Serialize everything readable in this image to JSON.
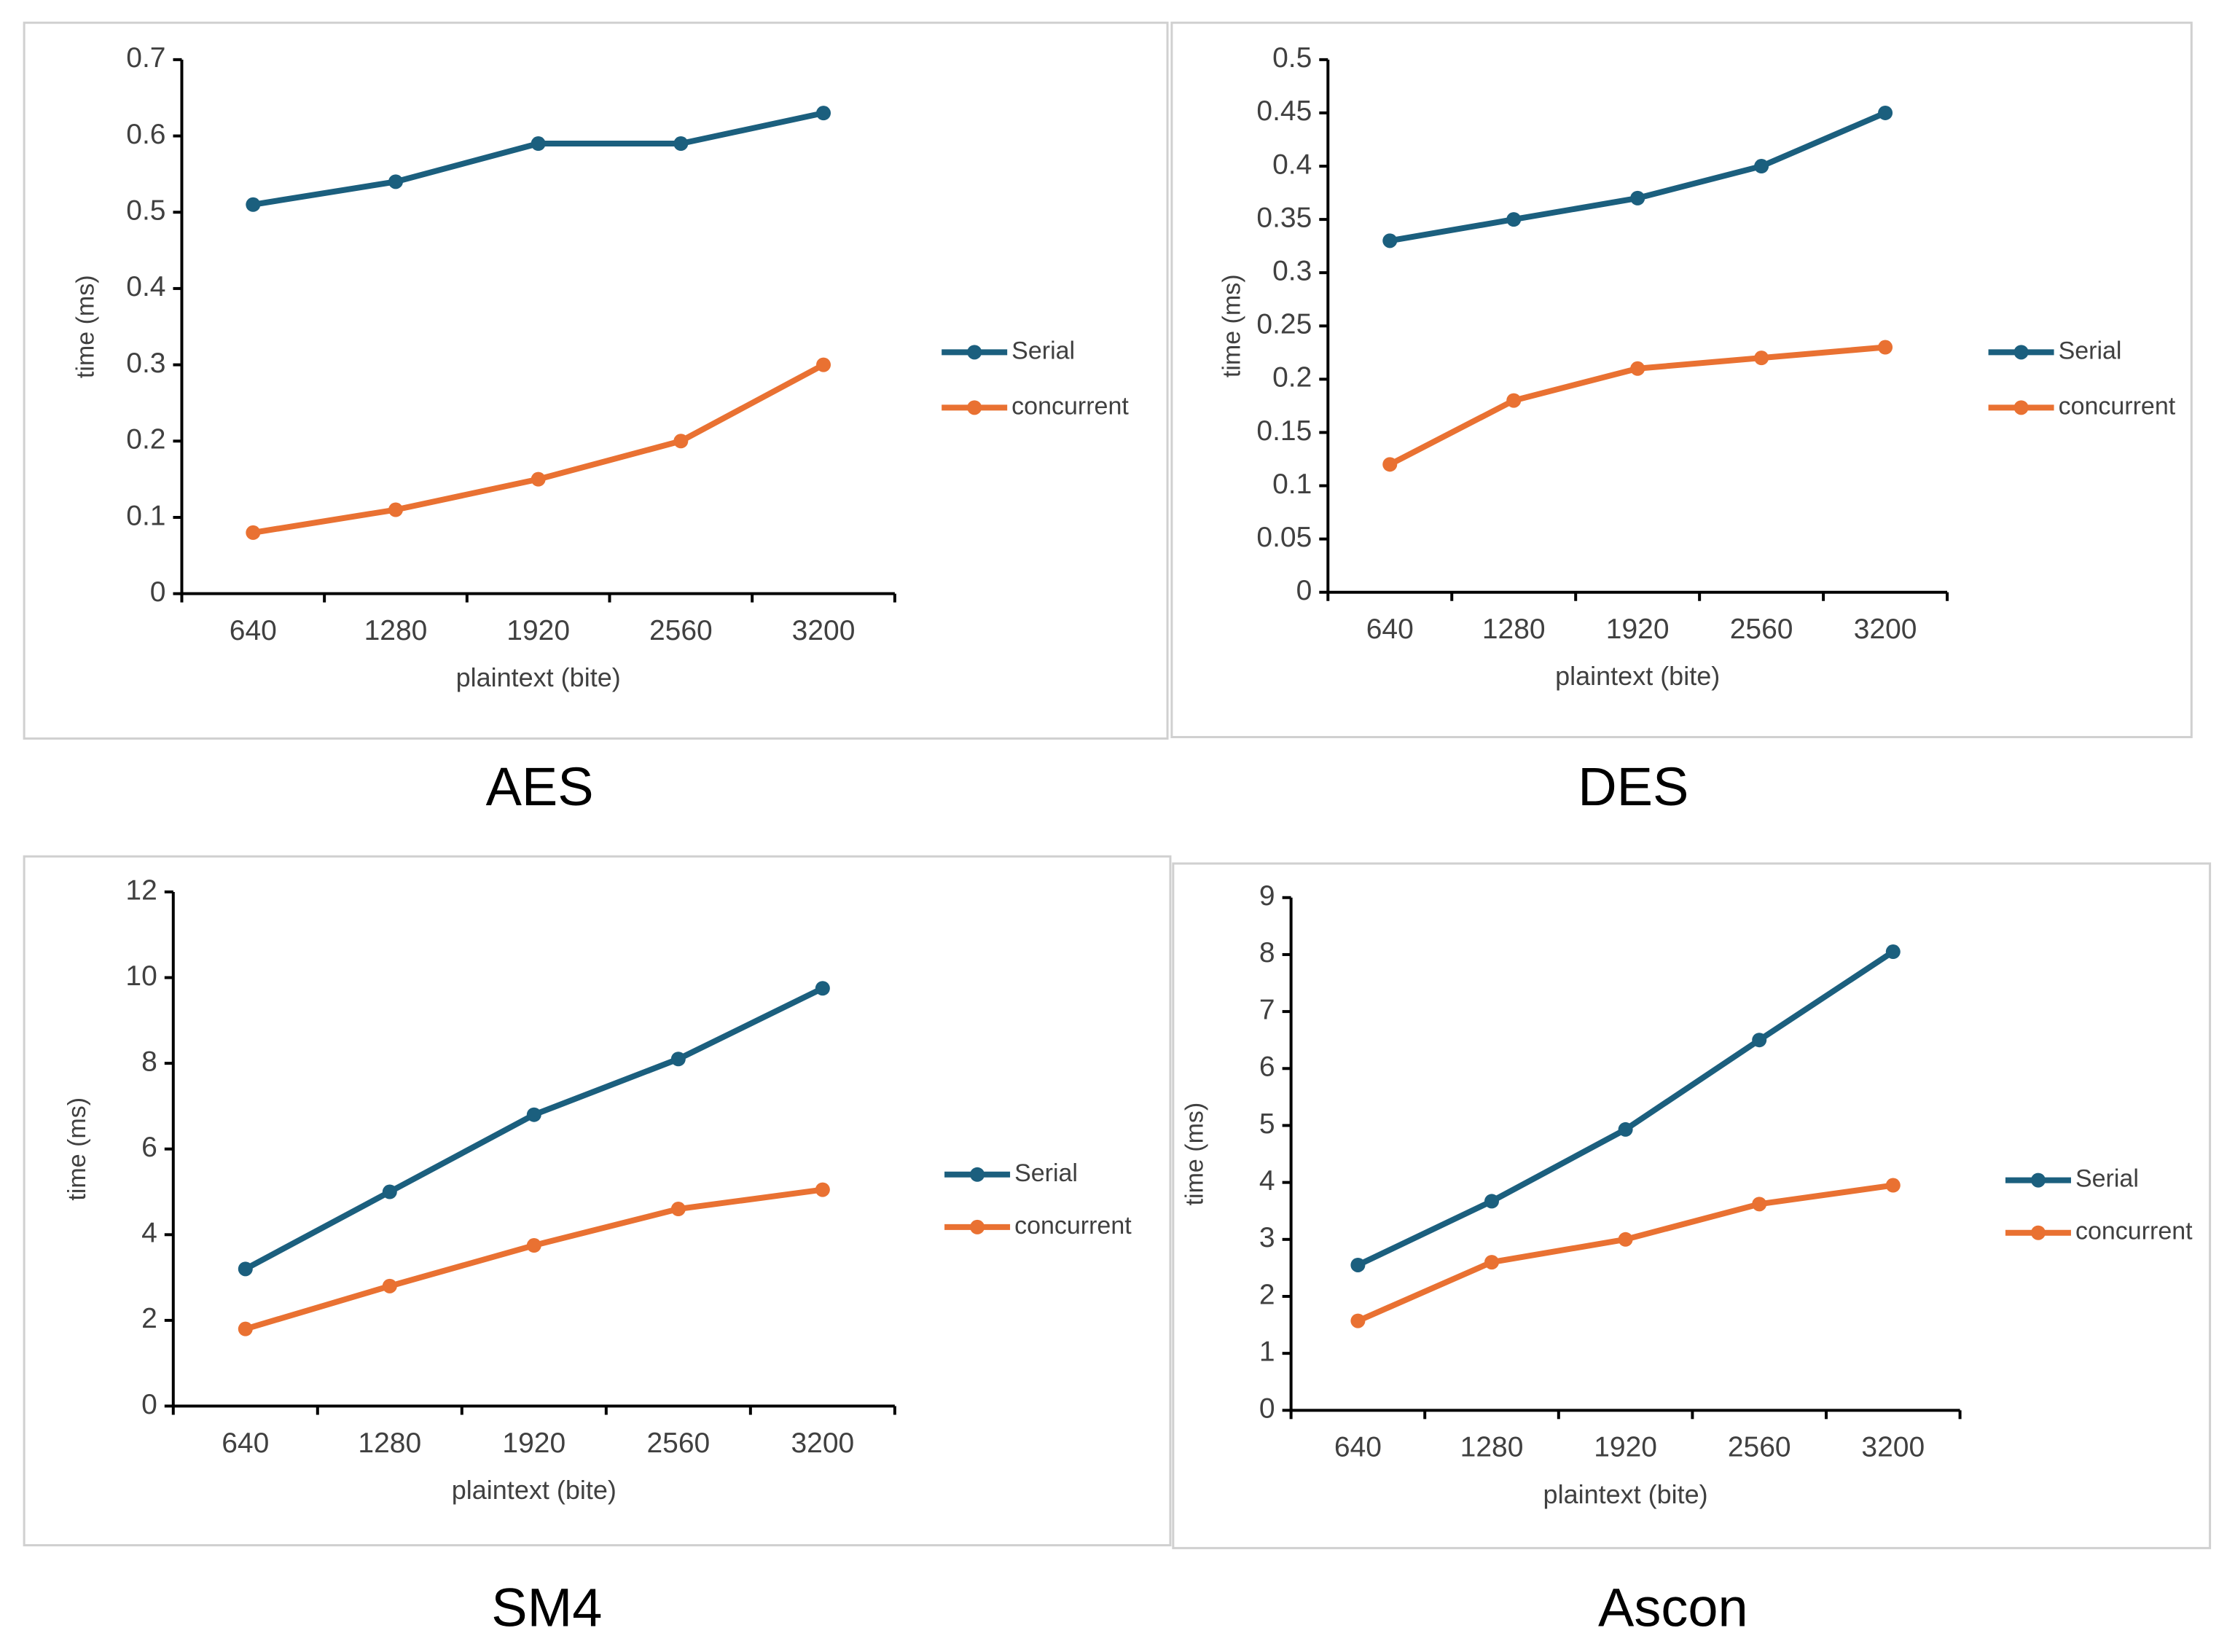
{
  "chart_data": [
    {
      "type": "line",
      "title": "AES",
      "x_label": "plaintext (bite)",
      "y_label": "time (ms)",
      "categories": [
        "640",
        "1280",
        "1920",
        "2560",
        "3200"
      ],
      "series": [
        {
          "name": "Serial",
          "color": "#1b5f7e",
          "values": [
            0.51,
            0.54,
            0.59,
            0.59,
            0.63
          ]
        },
        {
          "name": "concurrent",
          "color": "#e97132",
          "values": [
            0.08,
            0.11,
            0.15,
            0.2,
            0.3
          ]
        }
      ],
      "ylim": [
        0,
        0.7
      ],
      "yticks": [
        0,
        0.1,
        0.2,
        0.3,
        0.4,
        0.5,
        0.6,
        0.7
      ],
      "legend": "right"
    },
    {
      "type": "line",
      "title": "DES",
      "x_label": "plaintext (bite)",
      "y_label": "time (ms)",
      "categories": [
        "640",
        "1280",
        "1920",
        "2560",
        "3200"
      ],
      "series": [
        {
          "name": "Serial",
          "color": "#1b5f7e",
          "values": [
            0.33,
            0.35,
            0.37,
            0.4,
            0.45
          ]
        },
        {
          "name": "concurrent",
          "color": "#e97132",
          "values": [
            0.12,
            0.18,
            0.21,
            0.22,
            0.23
          ]
        }
      ],
      "ylim": [
        0,
        0.5
      ],
      "yticks": [
        0,
        0.05,
        0.1,
        0.15,
        0.2,
        0.25,
        0.3,
        0.35,
        0.4,
        0.45,
        0.5
      ],
      "legend": "right"
    },
    {
      "type": "line",
      "title": "SM4",
      "x_label": "plaintext (bite)",
      "y_label": "time (ms)",
      "categories": [
        "640",
        "1280",
        "1920",
        "2560",
        "3200"
      ],
      "series": [
        {
          "name": "Serial",
          "color": "#1b5f7e",
          "values": [
            3.2,
            5.0,
            6.8,
            8.1,
            9.75
          ]
        },
        {
          "name": "concurrent",
          "color": "#e97132",
          "values": [
            1.8,
            2.8,
            3.75,
            4.6,
            5.05
          ]
        }
      ],
      "ylim": [
        0,
        12
      ],
      "yticks": [
        0,
        2,
        4,
        6,
        8,
        10,
        12
      ],
      "legend": "right"
    },
    {
      "type": "line",
      "title": "Ascon",
      "x_label": "plaintext (bite)",
      "y_label": "time (ms)",
      "categories": [
        "640",
        "1280",
        "1920",
        "2560",
        "3200"
      ],
      "series": [
        {
          "name": "Serial",
          "color": "#1b5f7e",
          "values": [
            2.55,
            3.67,
            4.93,
            6.5,
            8.05
          ]
        },
        {
          "name": "concurrent",
          "color": "#e97132",
          "values": [
            1.57,
            2.6,
            3.0,
            3.62,
            3.95
          ]
        }
      ],
      "ylim": [
        0,
        9
      ],
      "yticks": [
        0,
        1,
        2,
        3,
        4,
        5,
        6,
        7,
        8,
        9
      ],
      "legend": "right"
    }
  ]
}
